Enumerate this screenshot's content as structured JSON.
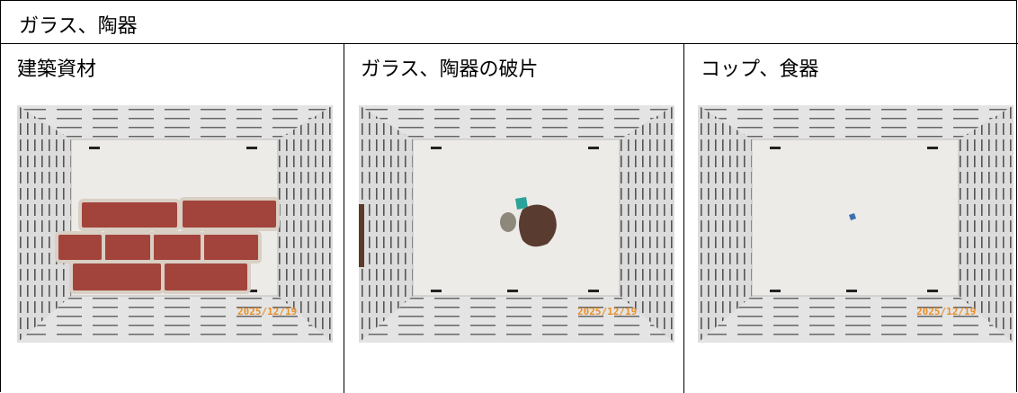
{
  "header": {
    "title": "ガラス、陶器"
  },
  "cells": [
    {
      "label": "建築資材",
      "date_stamp": "2025/12/19"
    },
    {
      "label": "ガラス、陶器の破片",
      "date_stamp": "2025/12/19"
    },
    {
      "label": "コップ、食器",
      "date_stamp": "2025/12/19"
    }
  ]
}
